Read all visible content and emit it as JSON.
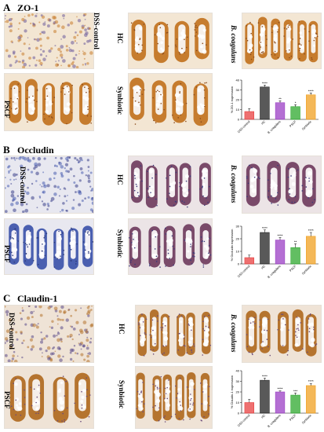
{
  "panels": [
    {
      "letter": "A",
      "title": "ZO-1",
      "labels": {
        "dss": "DSS-control",
        "hc": "HC",
        "bc": "B. coagulans",
        "pscf": "PSCF",
        "syn": "Synbiotic"
      },
      "stain": "brown"
    },
    {
      "letter": "B",
      "title": "Occludin",
      "labels": {
        "dss": "DSS-control",
        "hc": "HC",
        "bc": "B. coagulans",
        "pscf": "PSCF",
        "syn": "Synbiotic"
      },
      "stain": "blue"
    },
    {
      "letter": "C",
      "title": "Claudin-1",
      "labels": {
        "dss": "DSS-control",
        "hc": "HC",
        "bc": "B. coagulans",
        "pscf": "PSCF",
        "syn": "Synbiotic"
      },
      "stain": "mixed"
    }
  ],
  "chart_data": [
    {
      "type": "bar",
      "ylabel": "% ZO-1 expression",
      "categories": [
        "DSS-control",
        "HC",
        "B. coagulans",
        "PSCF",
        "Synbiotic"
      ],
      "values": [
        8,
        33,
        17,
        13,
        25
      ],
      "errors": [
        3,
        2,
        2,
        2,
        2
      ],
      "significance": [
        "",
        "****",
        "**",
        "*",
        "****"
      ],
      "ylim": [
        0,
        40
      ],
      "yticks": [
        0,
        10,
        20,
        30,
        40
      ],
      "colors": [
        "#e84040",
        "#222222",
        "#9b3fc4",
        "#2ea82e",
        "#f0a020"
      ]
    },
    {
      "type": "bar",
      "ylabel": "% Occludin expression",
      "categories": [
        "DSS-control",
        "HC",
        "B. coagulans",
        "PSCF",
        "Synbiotic"
      ],
      "values": [
        5,
        25,
        19,
        13,
        22
      ],
      "errors": [
        2,
        2,
        2,
        3,
        3
      ],
      "significance": [
        "",
        "****",
        "****",
        "**",
        "****"
      ],
      "ylim": [
        0,
        30
      ],
      "yticks": [
        0,
        10,
        20,
        30
      ],
      "colors": [
        "#e84040",
        "#222222",
        "#9b3fc4",
        "#2ea82e",
        "#f0a020"
      ]
    },
    {
      "type": "bar",
      "ylabel": "% Claudin-1 expression",
      "categories": [
        "DSS-control",
        "HC",
        "B. coagulans",
        "PSCF",
        "Synbiotic"
      ],
      "values": [
        10,
        31,
        20,
        17,
        26
      ],
      "errors": [
        3,
        2,
        1,
        2,
        2
      ],
      "significance": [
        "",
        "****",
        "****",
        "***",
        "****"
      ],
      "ylim": [
        0,
        40
      ],
      "yticks": [
        0,
        10,
        20,
        30,
        40
      ],
      "colors": [
        "#e84040",
        "#222222",
        "#9b3fc4",
        "#2ea82e",
        "#f0a020"
      ]
    }
  ]
}
